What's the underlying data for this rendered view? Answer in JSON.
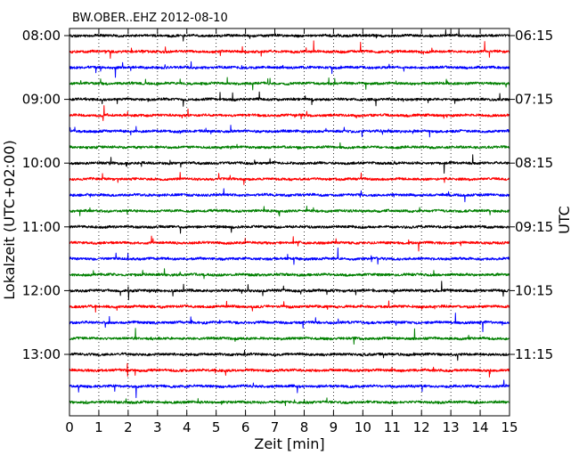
{
  "chart_data": {
    "type": "line",
    "title": "BW.OBER..EHZ 2012-08-10",
    "xlabel": "Zeit  [min]",
    "ylabel_left": "Lokalzeit (UTC+02:00)",
    "ylabel_right": "UTC",
    "x_range": [
      0,
      15
    ],
    "x_ticks": [
      "0",
      "1",
      "2",
      "3",
      "4",
      "5",
      "6",
      "7",
      "8",
      "9",
      "10",
      "11",
      "12",
      "13",
      "14",
      "15"
    ],
    "y_ticks_left": [
      "08:00",
      "09:00",
      "10:00",
      "11:00",
      "12:00",
      "13:00"
    ],
    "y_ticks_right": [
      "06:15",
      "07:15",
      "08:15",
      "09:15",
      "10:15",
      "11:15"
    ],
    "trace_count": 24,
    "trace_interval_minutes": 15,
    "first_trace_local": "08:00",
    "grid": "vertical dotted",
    "colors": [
      "#000000",
      "#ff0000",
      "#0000ff",
      "#008000"
    ]
  }
}
